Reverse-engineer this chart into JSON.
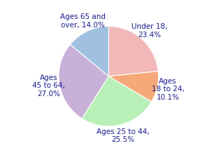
{
  "labels": [
    "Under 18,\n23.4%",
    "Ages\n18 to 24,\n10.1%",
    "Ages 25 to 44,\n25.5%",
    "Ages\n45 to 64,\n27.0%",
    "Ages 65 and\nover, 14.0%"
  ],
  "values": [
    23.4,
    10.1,
    25.5,
    27.0,
    14.0
  ],
  "colors": [
    "#f2b8b8",
    "#f5a878",
    "#b8f0b8",
    "#c8b0d8",
    "#a0c0e0"
  ],
  "startangle": 90,
  "background_color": "#ffffff",
  "label_fontsize": 7.5,
  "label_color": "#1a1a8c",
  "labeldistance": 1.22
}
